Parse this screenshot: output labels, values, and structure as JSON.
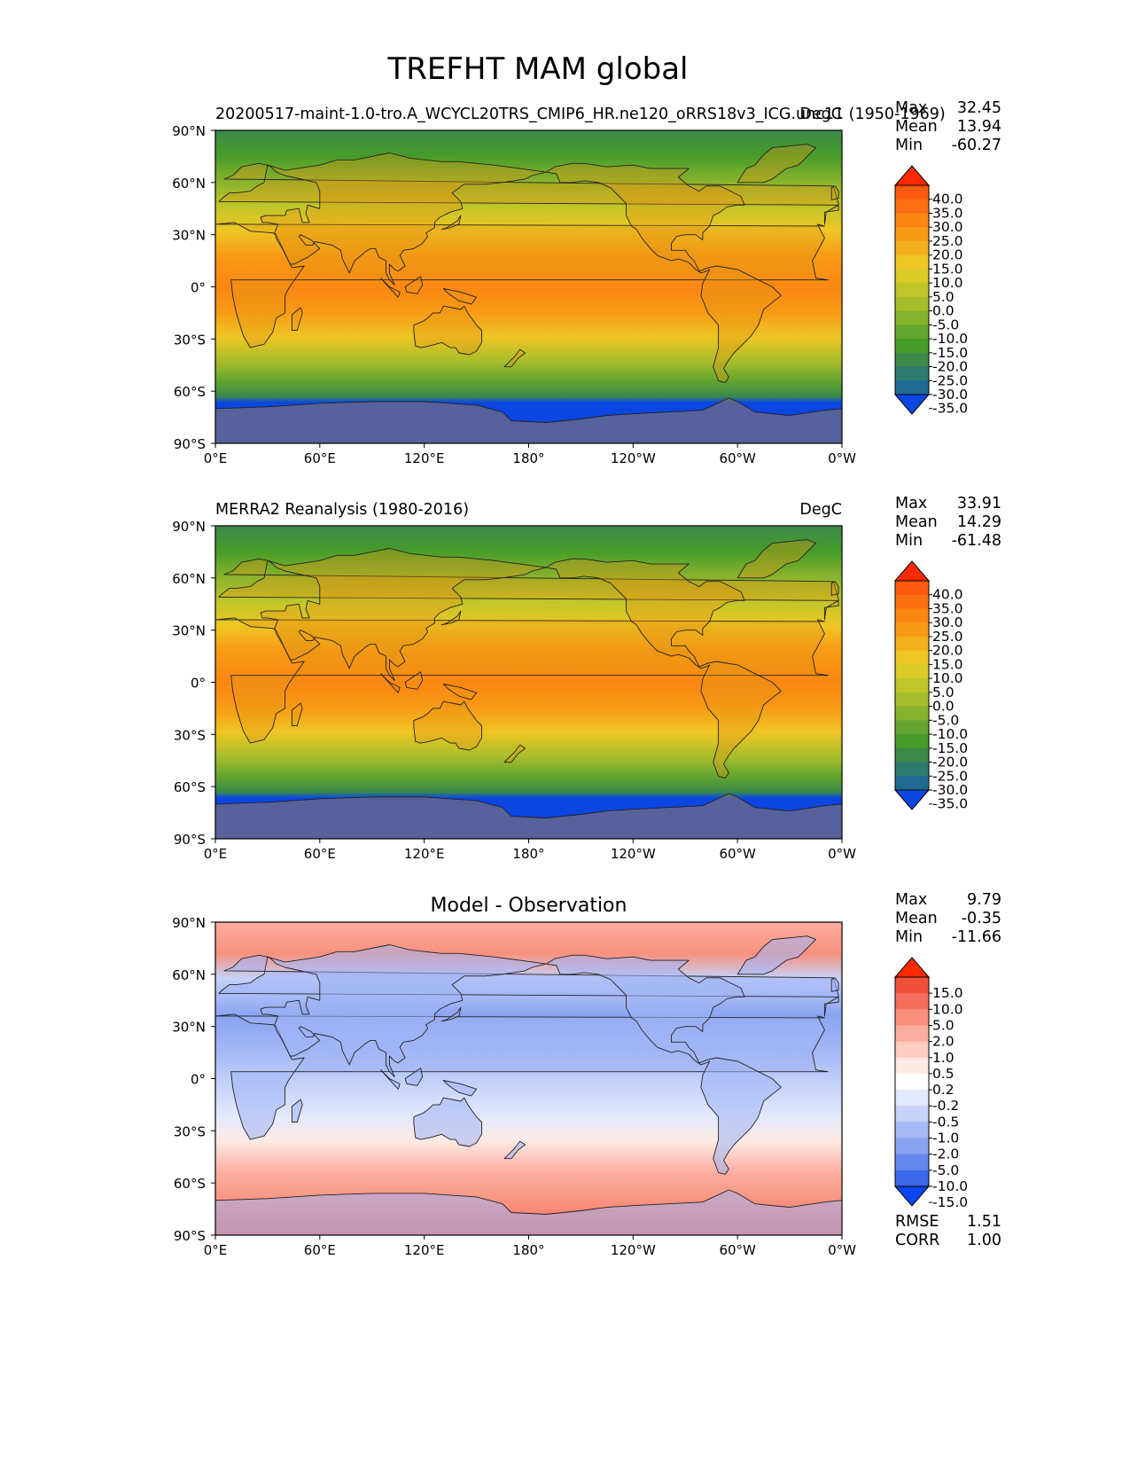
{
  "page_title": "TREFHT MAM global",
  "chart_data": [
    {
      "type": "heatmap",
      "panel": "test",
      "title_left": "20200517-maint-1.0-tro.A_WCYCL20TRS_CMIP6_HR.ne120_oRRS18v3_ICG.unc11 (1950-1969)",
      "title_center": "",
      "title_right": "DegC",
      "xlim": [
        0,
        360
      ],
      "ylim": [
        -90,
        90
      ],
      "xticks": [
        "0°E",
        "60°E",
        "120°E",
        "180°",
        "120°W",
        "60°W",
        "0°W"
      ],
      "yticks": [
        "90°N",
        "60°N",
        "30°N",
        "0°",
        "30°S",
        "60°S",
        "90°S"
      ],
      "stats": {
        "labels": [
          "Max",
          "Mean",
          "Min"
        ],
        "values": [
          "32.45",
          "13.94",
          "-60.27"
        ]
      },
      "colorbar": {
        "levels": [
          "40.0",
          "35.0",
          "30.0",
          "25.0",
          "20.0",
          "15.0",
          "10.0",
          "5.0",
          "0.0",
          "-5.0",
          "-10.0",
          "-15.0",
          "-20.0",
          "-25.0",
          "-30.0",
          "-35.0"
        ],
        "colors": [
          "#ff2a00",
          "#ff5a0f",
          "#fc6e12",
          "#fb8713",
          "#f89a15",
          "#f4b01c",
          "#eec624",
          "#d9ca26",
          "#bfc62a",
          "#a5bd2b",
          "#86b22c",
          "#63a52e",
          "#469c2a",
          "#3b8a4a",
          "#2d7a6e",
          "#1f6a94",
          "#0b46e3"
        ],
        "extend": "both"
      },
      "field": "temperature"
    },
    {
      "type": "heatmap",
      "panel": "reference",
      "title_left": "MERRA2 Reanalysis (1980-2016)",
      "title_center": "",
      "title_right": "DegC",
      "xlim": [
        0,
        360
      ],
      "ylim": [
        -90,
        90
      ],
      "xticks": [
        "0°E",
        "60°E",
        "120°E",
        "180°",
        "120°W",
        "60°W",
        "0°W"
      ],
      "yticks": [
        "90°N",
        "60°N",
        "30°N",
        "0°",
        "30°S",
        "60°S",
        "90°S"
      ],
      "stats": {
        "labels": [
          "Max",
          "Mean",
          "Min"
        ],
        "values": [
          "33.91",
          "14.29",
          "-61.48"
        ]
      },
      "colorbar": {
        "levels": [
          "40.0",
          "35.0",
          "30.0",
          "25.0",
          "20.0",
          "15.0",
          "10.0",
          "5.0",
          "0.0",
          "-5.0",
          "-10.0",
          "-15.0",
          "-20.0",
          "-25.0",
          "-30.0",
          "-35.0"
        ],
        "colors": [
          "#ff2a00",
          "#ff5a0f",
          "#fc6e12",
          "#fb8713",
          "#f89a15",
          "#f4b01c",
          "#eec624",
          "#d9ca26",
          "#bfc62a",
          "#a5bd2b",
          "#86b22c",
          "#63a52e",
          "#469c2a",
          "#3b8a4a",
          "#2d7a6e",
          "#1f6a94",
          "#0b46e3"
        ],
        "extend": "both"
      },
      "field": "temperature"
    },
    {
      "type": "heatmap",
      "panel": "difference",
      "title_left": "",
      "title_center": "Model - Observation",
      "title_right": "",
      "xlim": [
        0,
        360
      ],
      "ylim": [
        -90,
        90
      ],
      "xticks": [
        "0°E",
        "60°E",
        "120°E",
        "180°",
        "120°W",
        "60°W",
        "0°W"
      ],
      "yticks": [
        "90°N",
        "60°N",
        "30°N",
        "0°",
        "30°S",
        "60°S",
        "90°S"
      ],
      "stats": {
        "labels": [
          "Max",
          "Mean",
          "Min"
        ],
        "values": [
          "9.79",
          "-0.35",
          "-11.66"
        ]
      },
      "metrics": {
        "labels": [
          "RMSE",
          "CORR"
        ],
        "values": [
          "1.51",
          "1.00"
        ]
      },
      "colorbar": {
        "levels": [
          "15.0",
          "10.0",
          "5.0",
          "2.0",
          "1.0",
          "0.5",
          "0.2",
          "-0.2",
          "-0.5",
          "-1.0",
          "-2.0",
          "-5.0",
          "-10.0",
          "-15.0"
        ],
        "colors": [
          "#ff2a00",
          "#f0503a",
          "#f36e5c",
          "#f8907d",
          "#fbaea0",
          "#fdcdc2",
          "#feeae4",
          "#ffffff",
          "#e3e9fc",
          "#c5d2fa",
          "#a6b9f6",
          "#8aa3f1",
          "#6587ec",
          "#3e68ea",
          "#0b46f3"
        ],
        "extend": "both"
      },
      "field": "difference"
    }
  ]
}
